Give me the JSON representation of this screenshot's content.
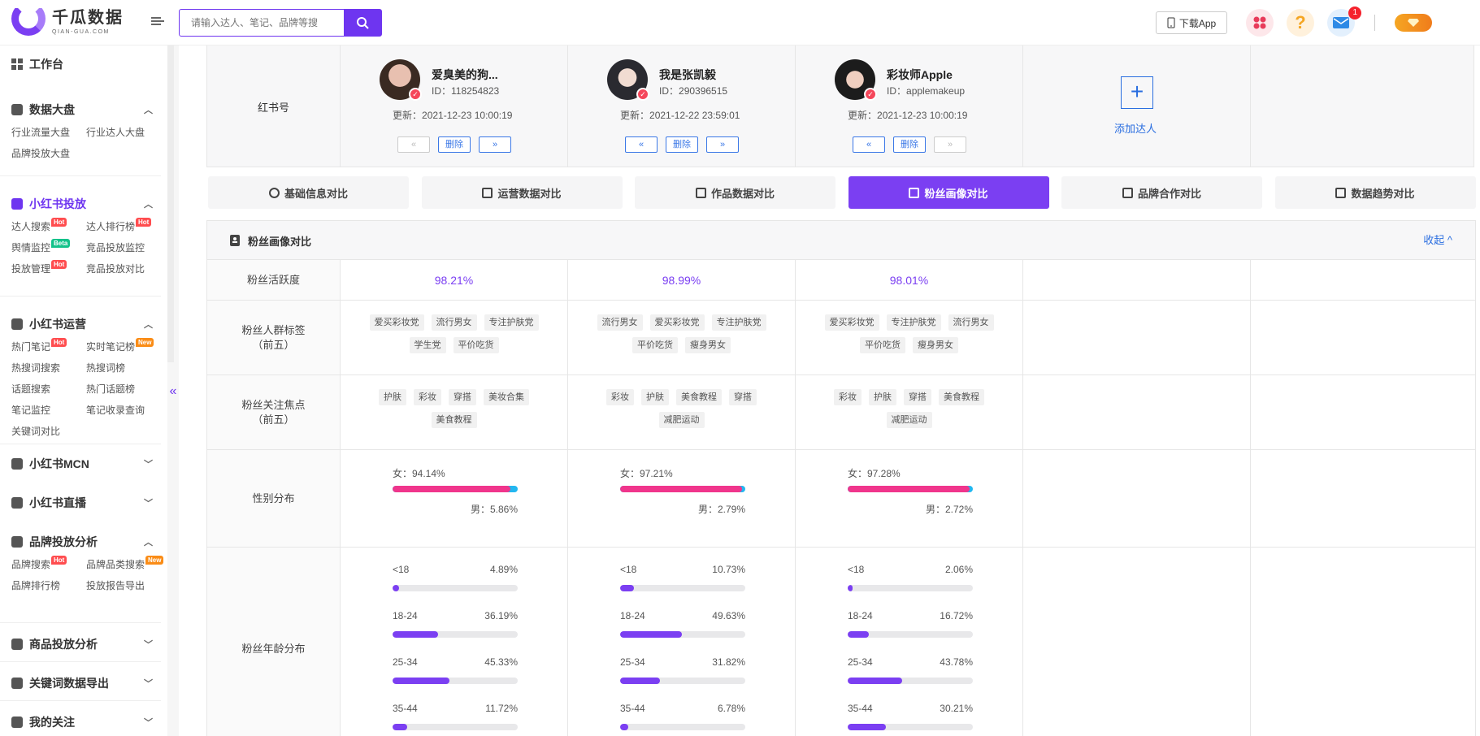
{
  "header": {
    "logo_cn": "千瓜数据",
    "logo_en": "QIAN-GUA.COM",
    "search_placeholder": "请输入达人、笔记、品牌等搜",
    "download_label": "下载App",
    "mail_badge": "1",
    "colors": {
      "accent": "#6e35f0",
      "apps": "#e83b5a",
      "help": "#f5a623",
      "mail": "#2e8ae6"
    }
  },
  "sidebar": {
    "workbench": "工作台",
    "sections": [
      {
        "title": "数据大盘",
        "items": [
          {
            "label": "行业流量大盘"
          },
          {
            "label": "行业达人大盘"
          },
          {
            "label": "品牌投放大盘"
          }
        ]
      },
      {
        "title": "小红书投放",
        "items": [
          {
            "label": "达人搜索",
            "tag": "Hot"
          },
          {
            "label": "达人排行榜",
            "tag": "Hot"
          },
          {
            "label": "舆情监控",
            "tag": "Beta"
          },
          {
            "label": "竞品投放监控"
          },
          {
            "label": "投放管理",
            "tag": "Hot"
          },
          {
            "label": "竞品投放对比"
          }
        ]
      },
      {
        "title": "小红书运营",
        "items": [
          {
            "label": "热门笔记",
            "tag": "Hot"
          },
          {
            "label": "实时笔记榜",
            "tag": "New"
          },
          {
            "label": "热搜词搜索"
          },
          {
            "label": "热搜词榜"
          },
          {
            "label": "话题搜索"
          },
          {
            "label": "热门话题榜"
          },
          {
            "label": "笔记监控"
          },
          {
            "label": "笔记收录查询"
          },
          {
            "label": "关键词对比"
          }
        ]
      },
      {
        "title": "小红书MCN",
        "items": []
      },
      {
        "title": "小红书直播",
        "items": []
      },
      {
        "title": "品牌投放分析",
        "items": [
          {
            "label": "品牌搜索",
            "tag": "Hot"
          },
          {
            "label": "品牌品类搜索",
            "tag": "New"
          },
          {
            "label": "品牌排行榜"
          },
          {
            "label": "投放报告导出"
          }
        ]
      },
      {
        "title": "商品投放分析",
        "items": []
      },
      {
        "title": "关键词数据导出",
        "items": []
      },
      {
        "title": "我的关注",
        "items": []
      }
    ]
  },
  "kol": {
    "row_label": "红书号",
    "update_prefix": "更新：",
    "id_prefix": "ID：",
    "delete_label": "删除",
    "prev_label": "«",
    "next_label": "»",
    "add_label": "添加达人",
    "items": [
      {
        "name": "爱臭美的狗...",
        "id": "118254823",
        "updated": "2021-12-23 10:00:19"
      },
      {
        "name": "我是张凯毅",
        "id": "290396515",
        "updated": "2021-12-22 23:59:01"
      },
      {
        "name": "彩妆师Apple",
        "id": "applemakeup",
        "updated": "2021-12-23 10:00:19"
      }
    ]
  },
  "tabs": [
    {
      "label": "基础信息对比",
      "icon": "user-circle-icon"
    },
    {
      "label": "运营数据对比",
      "icon": "clipboard-icon"
    },
    {
      "label": "作品数据对比",
      "icon": "list-icon"
    },
    {
      "label": "粉丝画像对比",
      "icon": "document-icon",
      "active": true
    },
    {
      "label": "品牌合作对比",
      "icon": "heart-icon"
    },
    {
      "label": "数据趋势对比",
      "icon": "trend-icon"
    }
  ],
  "compare": {
    "title": "粉丝画像对比",
    "toggle": "收起 ^",
    "activity_label": "粉丝活跃度",
    "activity": [
      "98.21%",
      "98.99%",
      "98.01%"
    ],
    "tags_label_1": "粉丝人群标签",
    "tags_label_2": "（前五）",
    "tags": [
      [
        "爱买彩妆党",
        "流行男女",
        "专注护肤党",
        "学生党",
        "平价吃货"
      ],
      [
        "流行男女",
        "爱买彩妆党",
        "专注护肤党",
        "平价吃货",
        "瘦身男女"
      ],
      [
        "爱买彩妆党",
        "专注护肤党",
        "流行男女",
        "平价吃货",
        "瘦身男女"
      ]
    ],
    "focus_label_1": "粉丝关注焦点",
    "focus_label_2": "（前五）",
    "focus": [
      [
        "护肤",
        "彩妆",
        "穿搭",
        "美妆合集",
        "美食教程"
      ],
      [
        "彩妆",
        "护肤",
        "美食教程",
        "穿搭",
        "减肥运动"
      ],
      [
        "彩妆",
        "护肤",
        "穿搭",
        "美食教程",
        "减肥运动"
      ]
    ],
    "gender_label": "性别分布",
    "gender": [
      {
        "female": "女：94.14%",
        "male": "男：5.86%",
        "female_frac": 0.9414
      },
      {
        "female": "女：97.21%",
        "male": "男：2.79%",
        "female_frac": 0.9721
      },
      {
        "female": "女：97.28%",
        "male": "男：2.72%",
        "female_frac": 0.9728
      }
    ],
    "age_label": "粉丝年龄分布",
    "age": [
      [
        {
          "range": "<18",
          "pct": "4.89%",
          "v": 0.0489
        },
        {
          "range": "18-24",
          "pct": "36.19%",
          "v": 0.3619
        },
        {
          "range": "25-34",
          "pct": "45.33%",
          "v": 0.4533
        },
        {
          "range": "35-44",
          "pct": "11.72%",
          "v": 0.1172
        }
      ],
      [
        {
          "range": "<18",
          "pct": "10.73%",
          "v": 0.1073
        },
        {
          "range": "18-24",
          "pct": "49.63%",
          "v": 0.4963
        },
        {
          "range": "25-34",
          "pct": "31.82%",
          "v": 0.3182
        },
        {
          "range": "35-44",
          "pct": "6.78%",
          "v": 0.0678
        }
      ],
      [
        {
          "range": "<18",
          "pct": "2.06%",
          "v": 0.0206
        },
        {
          "range": "18-24",
          "pct": "16.72%",
          "v": 0.1672
        },
        {
          "range": "25-34",
          "pct": "43.78%",
          "v": 0.4378
        },
        {
          "range": "35-44",
          "pct": "30.21%",
          "v": 0.3021
        }
      ]
    ]
  }
}
